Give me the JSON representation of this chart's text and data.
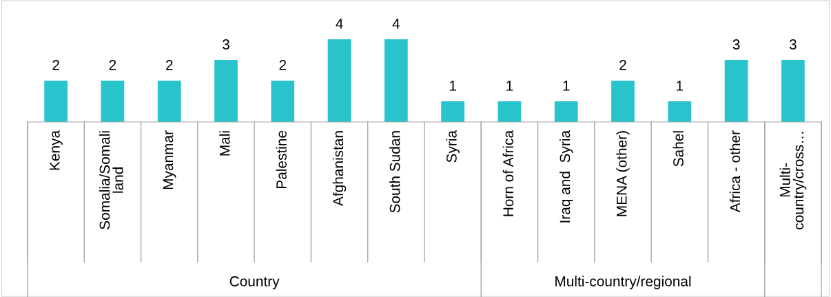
{
  "chart_data": {
    "type": "bar",
    "categories": [
      "Kenya",
      "Somalia/Somali\nland",
      "Myanmar",
      "Mali",
      "Palestine",
      "Afghanistan",
      "South Sudan",
      "Syria",
      "Horn of Africa",
      "Iraq and  Syria",
      "MENA (other)",
      "Sahel",
      "Africa - other",
      "Multi-\ncountry/cross…"
    ],
    "values": [
      2,
      2,
      2,
      3,
      2,
      4,
      4,
      1,
      1,
      1,
      2,
      1,
      3,
      3
    ],
    "color": "#29c3cb",
    "data_labels": true,
    "annotations": [
      "Country",
      "Multi-country/regional"
    ]
  }
}
